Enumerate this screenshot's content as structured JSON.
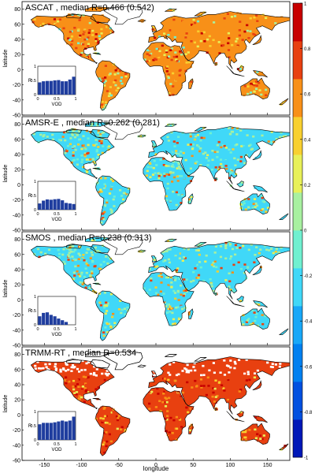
{
  "xlabel": "longitude",
  "ylabel": "latitude",
  "lon_ticks": [
    "-150",
    "-100",
    "-50",
    "0",
    "50",
    "100",
    "150"
  ],
  "lat_ticks": [
    "80",
    "60",
    "40",
    "20",
    "0",
    "-20",
    "-40",
    "-60"
  ],
  "colorbar": {
    "ticks": [
      "1",
      "0.8",
      "0.6",
      "0.4",
      "0.2",
      "0",
      "-0.2",
      "-0.4",
      "-0.6",
      "-0.8",
      "-1"
    ],
    "colors": [
      "#0018b8",
      "#0050e0",
      "#0080f0",
      "#18a8f8",
      "#40d8f8",
      "#70f0d0",
      "#a8f0a0",
      "#e8f058",
      "#f8d030",
      "#f89018",
      "#e84010",
      "#c80000"
    ]
  },
  "inset": {
    "ylabel": "R",
    "xlabel": "VOD",
    "y_ticks": [
      "1",
      "0.5",
      "0"
    ],
    "x_ticks": [
      "0",
      "0.5",
      "1"
    ],
    "bar_color": "#1f3d9e"
  },
  "panels": [
    {
      "title": "ASCAT , median R=0.466 (0.542)",
      "dominant": "warm",
      "inset_bars": [
        0.43,
        0.47,
        0.48,
        0.48,
        0.5,
        0.51,
        0.47,
        0.47,
        0.53,
        0.63
      ]
    },
    {
      "title": "AMSR-E , median R=0.262 (0.281)",
      "dominant": "mixed",
      "inset_bars": [
        0.22,
        0.32,
        0.36,
        0.35,
        0.37,
        0.38,
        0.33,
        0.24,
        0.22,
        0.2
      ]
    },
    {
      "title": "SMOS , median R=0.238 (0.313)",
      "dominant": "mixed",
      "inset_bars": [
        0.3,
        0.42,
        0.44,
        0.35,
        0.3,
        0.22,
        0.16,
        0.1,
        0.0,
        0.0
      ]
    },
    {
      "title": "TRMM-RT , median R=0.534",
      "dominant": "hot",
      "inset_bars": [
        0.55,
        0.6,
        0.6,
        0.6,
        0.62,
        0.65,
        0.68,
        0.65,
        0.68,
        0.82
      ]
    }
  ]
}
